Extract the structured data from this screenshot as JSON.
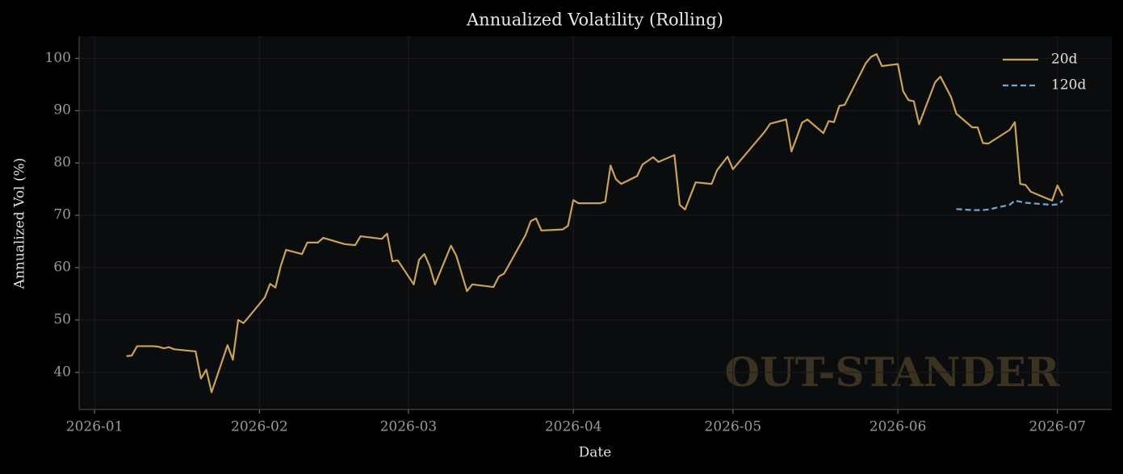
{
  "chart_data": {
    "type": "line",
    "title": "Annualized Volatility (Rolling)",
    "xlabel": "Date",
    "ylabel": "Annualized Vol (%)",
    "watermark": "OUT-STANDER",
    "legend": "upper right",
    "grid": true,
    "xlim": [
      -2.9,
      191.2
    ],
    "xticks": [
      {
        "value": 0,
        "label": "2026-01"
      },
      {
        "value": 31,
        "label": "2026-02"
      },
      {
        "value": 59,
        "label": "2026-03"
      },
      {
        "value": 90,
        "label": "2026-04"
      },
      {
        "value": 120,
        "label": "2026-05"
      },
      {
        "value": 151,
        "label": "2026-06"
      },
      {
        "value": 181,
        "label": "2026-07"
      }
    ],
    "ylim": [
      32.9,
      104.2
    ],
    "yticks": [
      40,
      50,
      60,
      70,
      80,
      90,
      100
    ],
    "x": [
      6,
      7,
      8,
      9,
      11,
      12,
      13,
      14,
      15,
      19,
      20,
      21,
      22,
      25,
      26,
      27,
      28,
      29,
      32,
      33,
      34,
      35,
      36,
      39,
      40,
      42,
      43,
      47,
      49,
      50,
      54,
      55,
      56,
      57,
      60,
      61,
      62,
      63,
      64,
      67,
      68,
      70,
      71,
      75,
      76,
      77,
      81,
      82,
      83,
      84,
      88,
      89,
      90,
      91,
      95,
      96,
      97,
      98,
      99,
      102,
      103,
      105,
      106,
      109,
      110,
      111,
      112,
      113,
      116,
      117,
      119,
      120,
      126,
      127,
      130,
      131,
      132,
      133,
      134,
      137,
      138,
      139,
      140,
      141,
      145,
      146,
      147,
      148,
      151,
      152,
      153,
      154,
      155,
      158,
      159,
      161,
      162,
      165,
      166,
      167,
      168,
      172,
      173,
      174,
      175,
      176,
      180,
      181,
      182
    ],
    "series": [
      {
        "name": "20d",
        "color": "#c9a35a",
        "dash": "solid",
        "values": [
          43.1,
          43.2,
          45.0,
          45.0,
          45.0,
          44.9,
          44.6,
          44.8,
          44.4,
          44.0,
          38.8,
          40.5,
          36.2,
          45.2,
          42.4,
          50.0,
          49.4,
          50.6,
          54.3,
          56.9,
          56.2,
          60.3,
          63.4,
          62.6,
          64.8,
          64.8,
          65.7,
          64.5,
          64.3,
          66.0,
          65.5,
          66.5,
          61.2,
          61.4,
          56.8,
          61.5,
          62.6,
          60.3,
          56.8,
          64.2,
          62.3,
          55.5,
          56.8,
          56.3,
          58.3,
          58.9,
          66.2,
          68.9,
          69.4,
          67.1,
          67.3,
          68.0,
          72.9,
          72.3,
          72.3,
          72.6,
          79.5,
          76.9,
          76.0,
          77.5,
          79.7,
          81.1,
          80.2,
          81.5,
          72.0,
          71.1,
          73.7,
          76.3,
          76.0,
          78.6,
          81.2,
          78.8,
          86.0,
          87.5,
          88.3,
          82.2,
          84.9,
          87.7,
          88.3,
          85.7,
          88.0,
          87.8,
          90.9,
          91.1,
          99.1,
          100.3,
          100.8,
          98.5,
          98.9,
          93.7,
          92.0,
          91.8,
          87.4,
          95.4,
          96.5,
          92.6,
          89.4,
          86.8,
          86.8,
          83.8,
          83.7,
          86.3,
          87.8,
          76.0,
          75.8,
          74.5,
          72.8,
          75.7,
          73.7
        ]
      },
      {
        "name": "120d",
        "color": "#6fa8dc",
        "dash": "dashed",
        "values": [
          null,
          null,
          null,
          null,
          null,
          null,
          null,
          null,
          null,
          null,
          null,
          null,
          null,
          null,
          null,
          null,
          null,
          null,
          null,
          null,
          null,
          null,
          null,
          null,
          null,
          null,
          null,
          null,
          null,
          null,
          null,
          null,
          null,
          null,
          null,
          null,
          null,
          null,
          null,
          null,
          null,
          null,
          null,
          null,
          null,
          null,
          null,
          null,
          null,
          null,
          null,
          null,
          null,
          null,
          null,
          null,
          null,
          null,
          null,
          null,
          null,
          null,
          null,
          null,
          null,
          null,
          null,
          null,
          null,
          null,
          null,
          null,
          null,
          null,
          null,
          null,
          null,
          null,
          null,
          null,
          null,
          null,
          null,
          null,
          null,
          null,
          null,
          null,
          null,
          null,
          null,
          null,
          null,
          null,
          null,
          null,
          71.2,
          71.0,
          71.0,
          71.0,
          71.1,
          72.0,
          72.8,
          72.6,
          72.4,
          72.3,
          72.0,
          72.1,
          72.8
        ]
      }
    ]
  }
}
